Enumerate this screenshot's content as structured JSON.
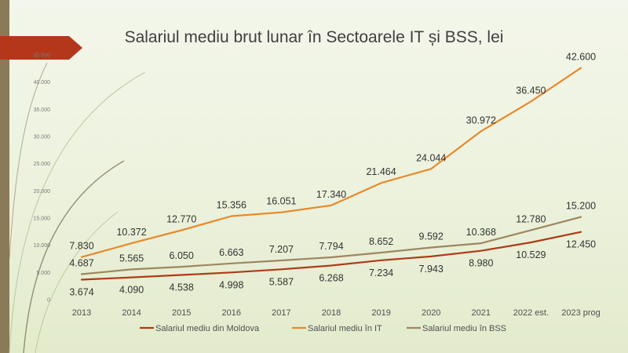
{
  "chart_data": {
    "type": "line",
    "title": "Salariul mediu brut lunar în Sectoarele IT și BSS, lei",
    "xlabel": "",
    "ylabel": "",
    "categories": [
      "2013",
      "2014",
      "2015",
      "2016",
      "2017",
      "2018",
      "2019",
      "2020",
      "2021",
      "2022 est.",
      "2023 prog"
    ],
    "ylim": [
      0,
      45000
    ],
    "yticks": [
      0,
      5000,
      10000,
      15000,
      20000,
      25000,
      30000,
      35000,
      40000,
      45000
    ],
    "ytick_labels": [
      "0",
      "5.000",
      "10.000",
      "15.000",
      "20.000",
      "25.000",
      "30.000",
      "35.000",
      "40.000",
      "45.000"
    ],
    "grid": false,
    "legend_position": "bottom",
    "series": [
      {
        "name": "Salariul mediu din Moldova",
        "color": "#b03a17",
        "values": [
          3674,
          4090,
          4538,
          4998,
          5587,
          6268,
          7234,
          7943,
          8980,
          10529,
          12450
        ],
        "labels": [
          "3.674",
          "4.090",
          "4.538",
          "4.998",
          "5.587",
          "6.268",
          "7.234",
          "7.943",
          "8.980",
          "10.529",
          "12.450"
        ],
        "label_position": "below"
      },
      {
        "name": "Salariul mediu în IT",
        "color": "#e8892a",
        "values": [
          7830,
          10372,
          12770,
          15356,
          16051,
          17340,
          21464,
          24044,
          30972,
          36450,
          42600
        ],
        "labels": [
          "7.830",
          "10.372",
          "12.770",
          "15.356",
          "16.051",
          "17.340",
          "21.464",
          "24.044",
          "30.972",
          "36.450",
          "42.600"
        ],
        "label_position": "above"
      },
      {
        "name": "Salariul mediu în BSS",
        "color": "#9e8660",
        "values": [
          4687,
          5565,
          6050,
          6663,
          7207,
          7794,
          8652,
          9592,
          10368,
          12780,
          15200
        ],
        "labels": [
          "4.687",
          "5.565",
          "6.050",
          "6.663",
          "7.207",
          "7.794",
          "8.652",
          "9.592",
          "10.368",
          "12.780",
          "15.200"
        ],
        "label_position": "above"
      }
    ]
  },
  "decor_colors": {
    "left_bar": "#8a7a58",
    "arrow": "#b5371b"
  }
}
